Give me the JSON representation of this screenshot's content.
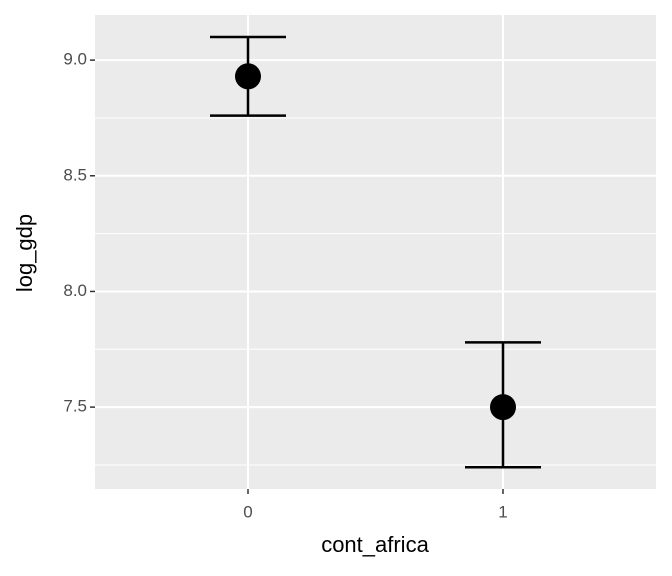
{
  "chart_data": {
    "type": "errorbar",
    "x_label": "cont_africa",
    "y_label": "log_gdp",
    "categories": [
      "0",
      "1"
    ],
    "series": [
      {
        "color": "#000000",
        "values": [
          8.93,
          7.5
        ],
        "lower": [
          8.76,
          7.24
        ],
        "upper": [
          9.1,
          7.78
        ]
      }
    ],
    "ylim": [
      7.146,
      9.195
    ],
    "yticks": [
      {
        "value": 7.5,
        "label": "7.5"
      },
      {
        "value": 8,
        "label": "8.0"
      },
      {
        "value": 8.5,
        "label": "8.5"
      },
      {
        "value": 9,
        "label": "9.0"
      }
    ],
    "y_minor_ticks": [
      7.25,
      7.75,
      8.25,
      8.75
    ],
    "grid": true,
    "panel_color": "#ebebeb"
  }
}
